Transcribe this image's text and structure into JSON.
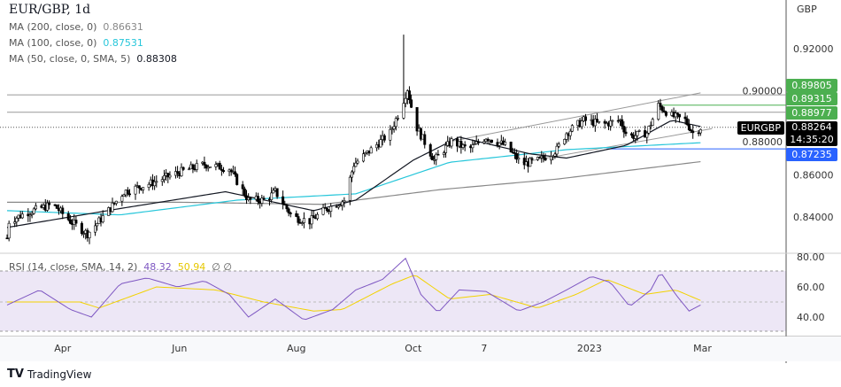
{
  "header": {
    "title": "EUR/GBP, 1d",
    "currency": "GBP"
  },
  "legend": [
    {
      "label": "MA (200, close, 0)",
      "value": "0.86631",
      "color": "#888888"
    },
    {
      "label": "MA (100, close, 0)",
      "value": "0.87531",
      "color": "#26c6da"
    },
    {
      "label": "MA (50, close, 0, SMA, 5)",
      "value": "0.88308",
      "color": "#131722"
    }
  ],
  "rsi_legend": {
    "label": "RSI (14, close, SMA, 14, 2)",
    "rsi": "48.32",
    "ma": "50.94",
    "extra1": "∅",
    "extra2": "∅",
    "rsi_color": "#7e57c2",
    "ma_color": "#f2d200"
  },
  "price_tags": [
    {
      "value": "0.89805",
      "color": "#4caf50"
    },
    {
      "value": "0.89315",
      "color": "#4caf50"
    },
    {
      "value": "0.88977",
      "color": "#4caf50"
    },
    {
      "value": "0.87235",
      "color": "#2962ff"
    }
  ],
  "current": {
    "symbol": "EURGBP",
    "price": "0.88264",
    "countdown": "14:35:20"
  },
  "branding": "TradingView",
  "chart_data": {
    "type": "candlestick",
    "price_axis": {
      "ticks": [
        "0.92000",
        "0.90000",
        "0.88000",
        "0.86000",
        "0.84000"
      ],
      "range": [
        0.826,
        0.93
      ]
    },
    "rsi_axis": {
      "ticks": [
        "80.00",
        "60.00",
        "40.00"
      ],
      "upper_band": 70,
      "lower_band": 30
    },
    "x_ticks": [
      {
        "label": "Apr",
        "date": "2022-04-01"
      },
      {
        "label": "Jun",
        "date": "2022-06-01"
      },
      {
        "label": "Aug",
        "date": "2022-08-01"
      },
      {
        "label": "Oct",
        "date": "2022-10-01"
      },
      {
        "label": "7",
        "date": "2022-11-07"
      },
      {
        "label": "2023",
        "date": "2023-01-01"
      },
      {
        "label": "Mar",
        "date": "2023-03-01"
      }
    ],
    "close_path": [
      [
        "2022-03-03",
        0.83
      ],
      [
        "2022-03-04",
        0.838
      ],
      [
        "2022-03-13",
        0.842
      ],
      [
        "2022-03-27",
        0.846
      ],
      [
        "2022-04-05",
        0.838
      ],
      [
        "2022-04-14",
        0.832
      ],
      [
        "2022-04-24",
        0.842
      ],
      [
        "2022-05-03",
        0.852
      ],
      [
        "2022-05-17",
        0.856
      ],
      [
        "2022-05-31",
        0.861
      ],
      [
        "2022-06-14",
        0.865
      ],
      [
        "2022-06-27",
        0.863
      ],
      [
        "2022-07-07",
        0.848
      ],
      [
        "2022-07-16",
        0.848
      ],
      [
        "2022-07-21",
        0.852
      ],
      [
        "2022-07-30",
        0.84
      ],
      [
        "2022-08-08",
        0.838
      ],
      [
        "2022-08-17",
        0.844
      ],
      [
        "2022-08-26",
        0.848
      ],
      [
        "2022-08-31",
        0.865
      ],
      [
        "2022-09-09",
        0.872
      ],
      [
        "2022-09-19",
        0.88
      ],
      [
        "2022-09-25",
        0.893
      ],
      [
        "2022-09-28",
        0.901
      ],
      [
        "2022-10-02",
        0.884
      ],
      [
        "2022-10-12",
        0.867
      ],
      [
        "2022-10-21",
        0.876
      ],
      [
        "2022-10-30",
        0.872
      ],
      [
        "2022-11-08",
        0.878
      ],
      [
        "2022-11-18",
        0.874
      ],
      [
        "2022-11-27",
        0.865
      ],
      [
        "2022-12-06",
        0.867
      ],
      [
        "2022-12-15",
        0.872
      ],
      [
        "2022-12-20",
        0.88
      ],
      [
        "2022-12-29",
        0.886
      ],
      [
        "2023-01-08",
        0.884
      ],
      [
        "2023-01-17",
        0.886
      ],
      [
        "2023-01-21",
        0.878
      ],
      [
        "2023-01-31",
        0.88
      ],
      [
        "2023-02-06",
        0.893
      ],
      [
        "2023-02-13",
        0.888
      ],
      [
        "2023-02-20",
        0.886
      ],
      [
        "2023-02-24",
        0.88
      ],
      [
        "2023-02-28",
        0.8826
      ]
    ],
    "spike_high": [
      "2022-09-26",
      0.9267
    ],
    "ma200": [
      [
        "2022-03-03",
        0.847
      ],
      [
        "2022-06-01",
        0.847
      ],
      [
        "2022-08-15",
        0.846
      ],
      [
        "2022-10-15",
        0.853
      ],
      [
        "2022-12-15",
        0.858
      ],
      [
        "2023-02-28",
        0.8663
      ]
    ],
    "ma100": [
      [
        "2022-03-03",
        0.843
      ],
      [
        "2022-05-01",
        0.841
      ],
      [
        "2022-07-01",
        0.848
      ],
      [
        "2022-09-01",
        0.851
      ],
      [
        "2022-10-20",
        0.866
      ],
      [
        "2022-12-20",
        0.872
      ],
      [
        "2023-02-28",
        0.8753
      ]
    ],
    "ma50": [
      [
        "2022-03-03",
        0.835
      ],
      [
        "2022-05-01",
        0.844
      ],
      [
        "2022-06-25",
        0.852
      ],
      [
        "2022-08-10",
        0.843
      ],
      [
        "2022-09-01",
        0.848
      ],
      [
        "2022-10-01",
        0.867
      ],
      [
        "2022-10-25",
        0.878
      ],
      [
        "2022-12-01",
        0.87
      ],
      [
        "2022-12-20",
        0.868
      ],
      [
        "2023-01-20",
        0.874
      ],
      [
        "2023-02-13",
        0.886
      ],
      [
        "2023-02-28",
        0.883
      ]
    ],
    "trend_lines": [
      [
        [
          "2022-10-21",
          0.876
        ],
        [
          "2023-02-28",
          0.899
        ]
      ],
      [
        [
          "2022-11-27",
          0.866
        ],
        [
          "2023-03-06",
          0.882
        ]
      ]
    ],
    "h_lines": [
      {
        "price": 0.89805,
        "from": "2022-03-03",
        "color": "#999999"
      },
      {
        "price": 0.88977,
        "from": "2022-03-03",
        "color": "#999999"
      },
      {
        "price": 0.89315,
        "from": "2023-02-08",
        "color": "#4caf50"
      },
      {
        "price": 0.87235,
        "from": "2023-01-10",
        "color": "#2962ff"
      }
    ],
    "rsi": [
      [
        "2022-03-03",
        48
      ],
      [
        "2022-03-20",
        58
      ],
      [
        "2022-04-05",
        45
      ],
      [
        "2022-04-16",
        40
      ],
      [
        "2022-05-01",
        62
      ],
      [
        "2022-05-15",
        66
      ],
      [
        "2022-05-31",
        60
      ],
      [
        "2022-06-14",
        64
      ],
      [
        "2022-06-27",
        55
      ],
      [
        "2022-07-07",
        40
      ],
      [
        "2022-07-21",
        52
      ],
      [
        "2022-08-05",
        38
      ],
      [
        "2022-08-20",
        45
      ],
      [
        "2022-09-01",
        58
      ],
      [
        "2022-09-15",
        65
      ],
      [
        "2022-09-27",
        79
      ],
      [
        "2022-10-05",
        55
      ],
      [
        "2022-10-14",
        43
      ],
      [
        "2022-10-25",
        58
      ],
      [
        "2022-11-08",
        57
      ],
      [
        "2022-11-25",
        44
      ],
      [
        "2022-12-08",
        50
      ],
      [
        "2022-12-20",
        58
      ],
      [
        "2023-01-02",
        67
      ],
      [
        "2023-01-12",
        63
      ],
      [
        "2023-01-22",
        47
      ],
      [
        "2023-02-02",
        58
      ],
      [
        "2023-02-07",
        70
      ],
      [
        "2023-02-15",
        55
      ],
      [
        "2023-02-22",
        44
      ],
      [
        "2023-02-28",
        48
      ]
    ],
    "rsi_ma": [
      [
        "2022-03-03",
        50
      ],
      [
        "2022-04-10",
        50
      ],
      [
        "2022-04-20",
        46
      ],
      [
        "2022-05-20",
        60
      ],
      [
        "2022-06-20",
        58
      ],
      [
        "2022-07-15",
        50
      ],
      [
        "2022-08-10",
        44
      ],
      [
        "2022-08-25",
        45
      ],
      [
        "2022-09-20",
        62
      ],
      [
        "2022-10-02",
        68
      ],
      [
        "2022-10-20",
        52
      ],
      [
        "2022-11-10",
        55
      ],
      [
        "2022-12-05",
        46
      ],
      [
        "2022-12-25",
        55
      ],
      [
        "2023-01-10",
        65
      ],
      [
        "2023-01-30",
        55
      ],
      [
        "2023-02-15",
        58
      ],
      [
        "2023-02-28",
        51
      ]
    ]
  }
}
